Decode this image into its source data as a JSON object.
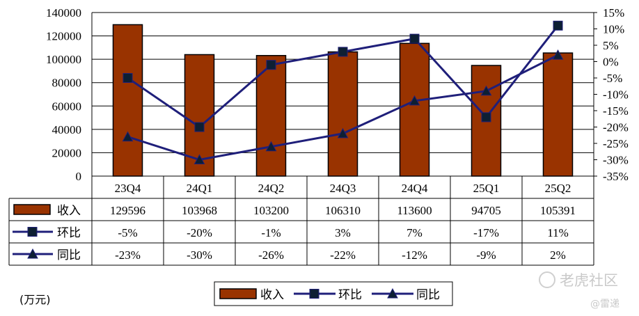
{
  "colors": {
    "bar": "#993300",
    "line": "#1f1f7a",
    "marker_fill": "#0d1f33",
    "grid": "#000000",
    "watermark": "#c9c9c9"
  },
  "unit_label": "(万元)",
  "watermark": {
    "brand": "老虎社区",
    "author": "@雷递"
  },
  "chart_data": {
    "type": "bar",
    "categories": [
      "23Q4",
      "24Q1",
      "24Q2",
      "24Q3",
      "24Q4",
      "25Q1",
      "25Q2"
    ],
    "left_axis": {
      "ylim": [
        0,
        140000
      ],
      "ticks": [
        "0",
        "20000",
        "40000",
        "60000",
        "80000",
        "100000",
        "120000",
        "140000"
      ]
    },
    "right_axis": {
      "ylim": [
        -35,
        15
      ],
      "ticks": [
        "-35%",
        "-30%",
        "-25%",
        "-20%",
        "-15%",
        "-10%",
        "-5%",
        "0%",
        "5%",
        "10%",
        "15%"
      ]
    },
    "grid": true,
    "legend_position": "bottom",
    "series": [
      {
        "name": "收入",
        "type": "bar",
        "axis": "left",
        "values": [
          129596,
          103968,
          103200,
          106310,
          113600,
          94705,
          105391
        ],
        "labels": [
          "129596",
          "103968",
          "103200",
          "106310",
          "113600",
          "94705",
          "105391"
        ]
      },
      {
        "name": "环比",
        "type": "line",
        "marker": "square",
        "axis": "right",
        "values": [
          -5,
          -20,
          -1,
          3,
          7,
          -17,
          11
        ],
        "labels": [
          "-5%",
          "-20%",
          "-1%",
          "3%",
          "7%",
          "-17%",
          "11%"
        ]
      },
      {
        "name": "同比",
        "type": "line",
        "marker": "triangle",
        "axis": "right",
        "values": [
          -23,
          -30,
          -26,
          -22,
          -12,
          -9,
          2
        ],
        "labels": [
          "-23%",
          "-30%",
          "-26%",
          "-22%",
          "-12%",
          "-9%",
          "2%"
        ]
      }
    ]
  }
}
